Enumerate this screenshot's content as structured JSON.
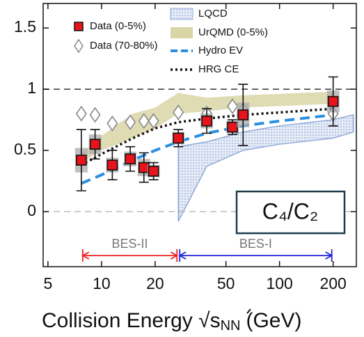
{
  "chart_data": {
    "type": "scatter",
    "xscale": "log",
    "xlim": [
      4.7,
      270
    ],
    "ylim": [
      -0.45,
      1.7
    ],
    "xticks": [
      5,
      10,
      20,
      50,
      100,
      200
    ],
    "yticks": [
      0,
      0.5,
      1,
      1.5
    ],
    "xlabel": {
      "text": "Collision Energy √s",
      "sub": "NN",
      "unit": "(GeV)"
    },
    "reference_lines": [
      {
        "value": 1,
        "color": "#333333"
      },
      {
        "value": 0,
        "color": "#bbbbbb"
      }
    ],
    "series": [
      {
        "name": "LQCD",
        "kind": "band",
        "color": "#8fa8d8",
        "x": [
          27,
          39,
          62.4,
          100,
          200,
          260
        ],
        "upper": [
          0.53,
          0.57,
          0.65,
          0.7,
          0.75,
          0.79
        ],
        "lower": [
          -0.08,
          0.37,
          0.5,
          0.55,
          0.6,
          0.65
        ]
      },
      {
        "name": "UrQMD (0-5%)",
        "kind": "band",
        "color": "#d9d5a6",
        "x": [
          7.7,
          10,
          15,
          20,
          27,
          39,
          62.4,
          200
        ],
        "upper": [
          0.47,
          0.62,
          0.8,
          0.85,
          0.97,
          0.93,
          0.95,
          0.98
        ],
        "lower": [
          0.4,
          0.5,
          0.6,
          0.68,
          0.8,
          0.82,
          0.85,
          0.88
        ]
      },
      {
        "name": "Hydro EV",
        "kind": "dashed",
        "color": "#2b8fe0",
        "x": [
          7.7,
          10,
          15,
          20,
          27,
          39,
          62.4,
          100,
          200
        ],
        "values": [
          0.23,
          0.3,
          0.42,
          0.5,
          0.57,
          0.64,
          0.7,
          0.74,
          0.79
        ]
      },
      {
        "name": "HRG CE",
        "kind": "dotted",
        "color": "#111111",
        "x": [
          7.7,
          10,
          15,
          20,
          27,
          39,
          62.4,
          100,
          200
        ],
        "values": [
          0.38,
          0.47,
          0.6,
          0.68,
          0.73,
          0.76,
          0.79,
          0.81,
          0.84
        ]
      },
      {
        "name": "Data (70-80%)",
        "kind": "diamond",
        "color": "#888888",
        "x": [
          7.7,
          9.2,
          11.5,
          14.5,
          17.3,
          19.6,
          27,
          39,
          54.4,
          62.4,
          200
        ],
        "values": [
          0.8,
          0.79,
          0.72,
          0.73,
          0.74,
          0.74,
          0.81,
          0.8,
          0.86,
          0.83,
          0.8
        ]
      },
      {
        "name": "Data (0-5%)",
        "kind": "square",
        "color": "#e8141c",
        "x": [
          7.7,
          9.2,
          11.5,
          14.5,
          17.3,
          19.6,
          27,
          39,
          54.4,
          62.4,
          200
        ],
        "values": [
          0.42,
          0.55,
          0.38,
          0.43,
          0.36,
          0.33,
          0.6,
          0.74,
          0.69,
          0.79,
          0.9
        ],
        "errors": [
          0.25,
          0.12,
          0.12,
          0.1,
          0.12,
          0.07,
          0.07,
          0.1,
          0.06,
          0.25,
          0.2
        ],
        "sys": [
          0.1,
          0.08,
          0.06,
          0.06,
          0.07,
          0.05,
          0.05,
          0.06,
          0.05,
          0.1,
          0.09
        ]
      }
    ],
    "annotations": [
      {
        "text": "BES-II",
        "range": [
          7.7,
          27
        ],
        "color": "#ee2222"
      },
      {
        "text": "BES-I",
        "range": [
          27,
          200
        ],
        "color": "#2222dd"
      }
    ],
    "box_label": "C₄/C₂"
  }
}
